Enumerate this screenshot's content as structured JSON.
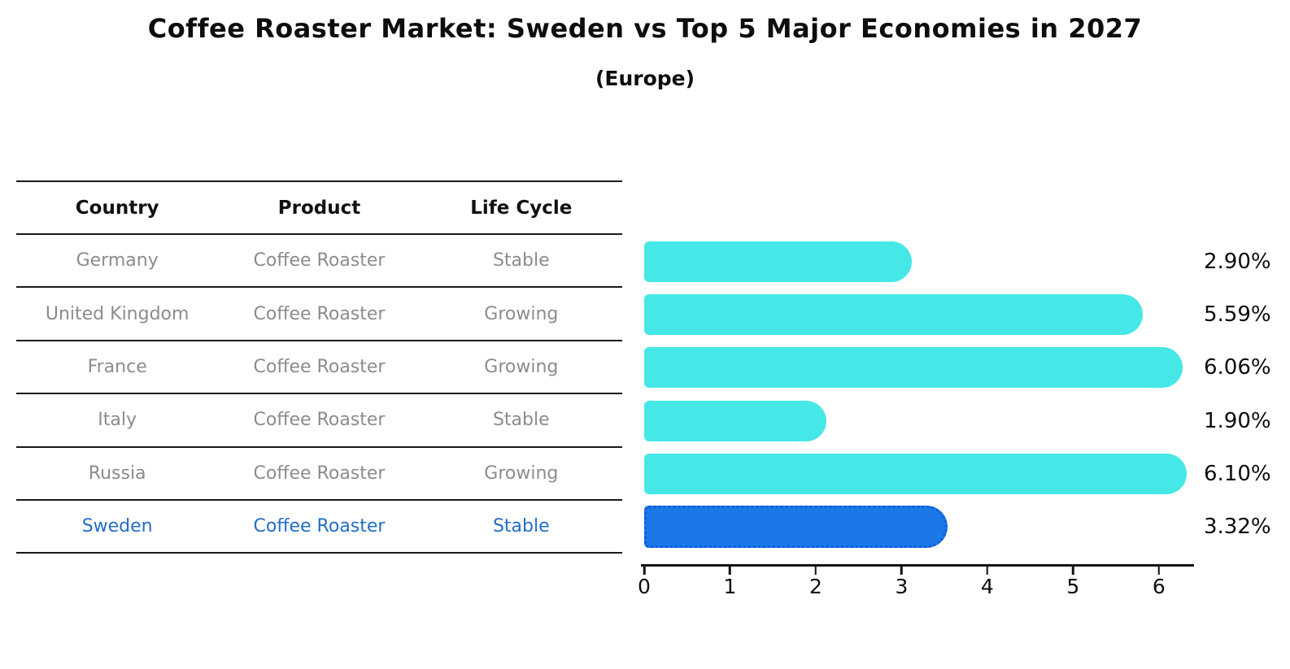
{
  "title": "Coffee Roaster Market: Sweden vs Top 5 Major Economies in 2027",
  "subtitle": "(Europe)",
  "table": {
    "headers": [
      "Country",
      "Product",
      "Life Cycle"
    ],
    "rows": [
      {
        "country": "Germany",
        "product": "Coffee Roaster",
        "life_cycle": "Stable",
        "highlight": false
      },
      {
        "country": "United Kingdom",
        "product": "Coffee Roaster",
        "life_cycle": "Growing",
        "highlight": false
      },
      {
        "country": "France",
        "product": "Coffee Roaster",
        "life_cycle": "Growing",
        "highlight": false
      },
      {
        "country": "Italy",
        "product": "Coffee Roaster",
        "life_cycle": "Stable",
        "highlight": false
      },
      {
        "country": "Russia",
        "product": "Coffee Roaster",
        "life_cycle": "Growing",
        "highlight": false
      },
      {
        "country": "Sweden",
        "product": "Coffee Roaster",
        "life_cycle": "Stable",
        "highlight": true
      }
    ]
  },
  "chart_data": {
    "type": "bar",
    "orientation": "horizontal",
    "title": "Coffee Roaster Market: Sweden vs Top 5 Major Economies in 2027",
    "subtitle": "(Europe)",
    "categories": [
      "Germany",
      "United Kingdom",
      "France",
      "Italy",
      "Russia",
      "Sweden"
    ],
    "values": [
      2.9,
      5.59,
      6.06,
      1.9,
      6.1,
      3.32
    ],
    "value_labels": [
      "2.90%",
      "5.59%",
      "6.06%",
      "1.90%",
      "6.10%",
      "3.32%"
    ],
    "x_ticks": [
      0,
      1,
      2,
      3,
      4,
      5,
      6
    ],
    "xlim": [
      0,
      6.4
    ],
    "highlight_index": 5,
    "grid": false,
    "legend": false,
    "bar_color": "#45E8E6",
    "highlight_bar_color": "#1A78E8"
  },
  "colors": {
    "background": "#FFFFFF",
    "bar": "#45E8E6",
    "highlight_bar": "#1A78E8",
    "highlight_border": "#0F5FD7",
    "highlight_text": "#226EC8",
    "row_text": "#8C8C8C",
    "header_text": "#111111",
    "axis": "#111111"
  }
}
